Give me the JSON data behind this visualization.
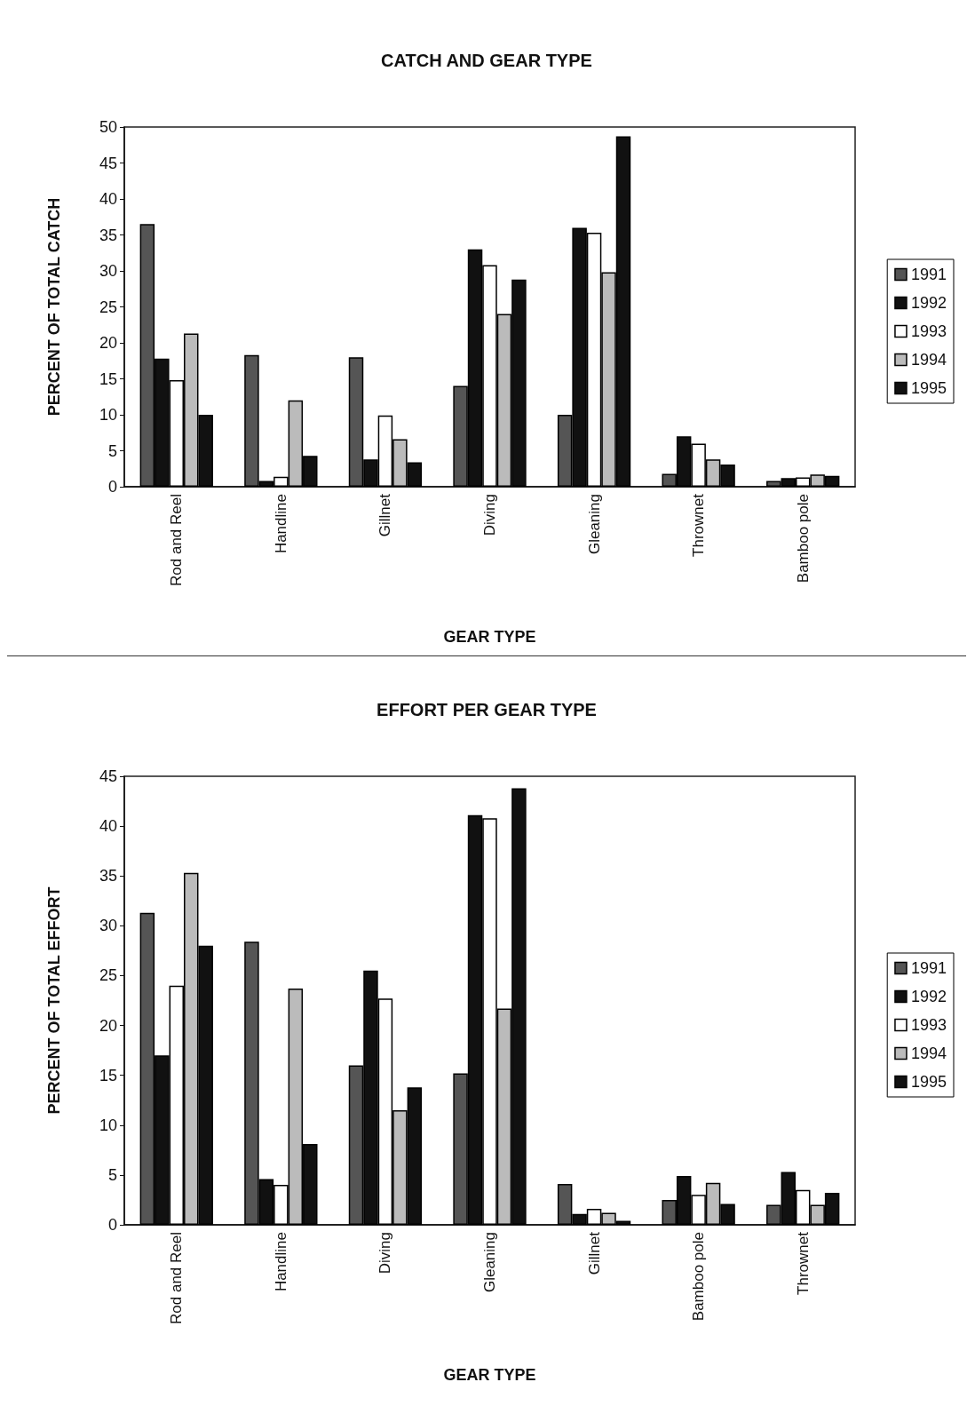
{
  "chart_data": [
    {
      "type": "bar",
      "title": "CATCH AND GEAR TYPE",
      "xlabel": "GEAR TYPE",
      "ylabel": "PERCENT OF TOTAL CATCH",
      "categories": [
        "Rod and Reel",
        "Handline",
        "Gillnet",
        "Diving",
        "Gleaning",
        "Thrownet",
        "Bamboo pole"
      ],
      "series": [
        {
          "name": "1991",
          "color": "#555555",
          "values": [
            36.5,
            18.3,
            18,
            14,
            10,
            1.8,
            0.8
          ]
        },
        {
          "name": "1992",
          "color": "#111111",
          "values": [
            17.8,
            0.8,
            3.8,
            33,
            36,
            7,
            1.2
          ]
        },
        {
          "name": "1993",
          "color": "#ffffff",
          "values": [
            14.8,
            1.4,
            9.9,
            30.8,
            35.3,
            6,
            1.3
          ]
        },
        {
          "name": "1994",
          "color": "#bbbbbb",
          "values": [
            21.3,
            12,
            6.6,
            24,
            29.8,
            3.8,
            1.7
          ]
        },
        {
          "name": "1995",
          "color": "#111111",
          "values": [
            10,
            4.3,
            3.4,
            28.8,
            48.7,
            3.1,
            1.5
          ]
        }
      ],
      "ylim": [
        0,
        50
      ],
      "yticks": [
        0,
        5,
        10,
        15,
        20,
        25,
        30,
        35,
        40,
        45,
        50
      ],
      "grid": false,
      "legend": "right"
    },
    {
      "type": "bar",
      "title": "EFFORT PER GEAR TYPE",
      "xlabel": "GEAR TYPE",
      "ylabel": "PERCENT OF TOTAL EFFORT",
      "categories": [
        "Rod and Reel",
        "Handline",
        "Diving",
        "Gleaning",
        "Gillnet",
        "Bamboo pole",
        "Thrownet"
      ],
      "series": [
        {
          "name": "1991",
          "color": "#555555",
          "values": [
            31.3,
            28.4,
            16,
            15.2,
            4.1,
            2.5,
            2
          ]
        },
        {
          "name": "1992",
          "color": "#111111",
          "values": [
            17,
            4.6,
            25.5,
            41.1,
            1.1,
            4.9,
            5.3
          ]
        },
        {
          "name": "1993",
          "color": "#ffffff",
          "values": [
            24,
            4,
            22.7,
            40.8,
            1.6,
            3,
            3.5
          ]
        },
        {
          "name": "1994",
          "color": "#bbbbbb",
          "values": [
            35.3,
            23.7,
            11.5,
            21.7,
            1.2,
            4.2,
            2
          ]
        },
        {
          "name": "1995",
          "color": "#111111",
          "values": [
            28,
            8.1,
            13.8,
            43.8,
            0.4,
            2.1,
            3.2
          ]
        }
      ],
      "ylim": [
        0,
        45
      ],
      "yticks": [
        0,
        5,
        10,
        15,
        20,
        25,
        30,
        35,
        40,
        45
      ],
      "grid": false,
      "legend": "right"
    }
  ]
}
